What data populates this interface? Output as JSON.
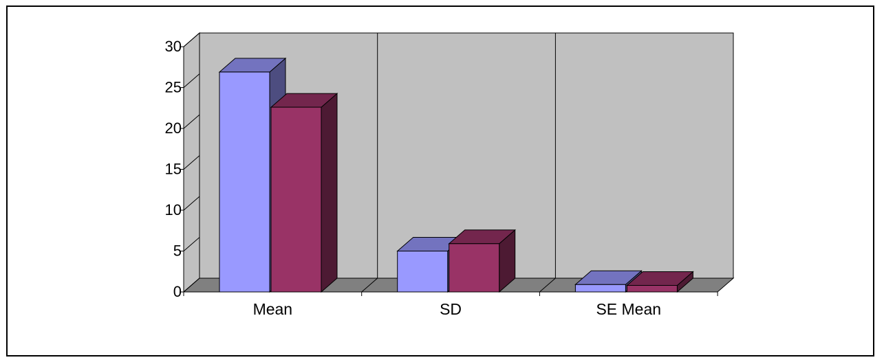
{
  "chart_data": {
    "type": "bar",
    "style": "3d-clustered-column",
    "categories": [
      "Mean",
      "SD",
      "SE Mean"
    ],
    "series": [
      {
        "color": "#9999ff",
        "values": [
          26.9,
          5.0,
          0.9
        ]
      },
      {
        "color": "#993366",
        "values": [
          22.6,
          5.9,
          0.8
        ]
      }
    ],
    "ylim": [
      0,
      30
    ],
    "yticks": [
      0,
      5,
      10,
      15,
      20,
      25,
      30
    ],
    "ytick_labels": [
      "0",
      "5",
      "10",
      "15",
      "20",
      "25",
      "30"
    ],
    "grid": false,
    "legend": "none",
    "colors": {
      "wall": "#c0c0c0",
      "floor": "#808080",
      "outline": "#000000"
    }
  }
}
